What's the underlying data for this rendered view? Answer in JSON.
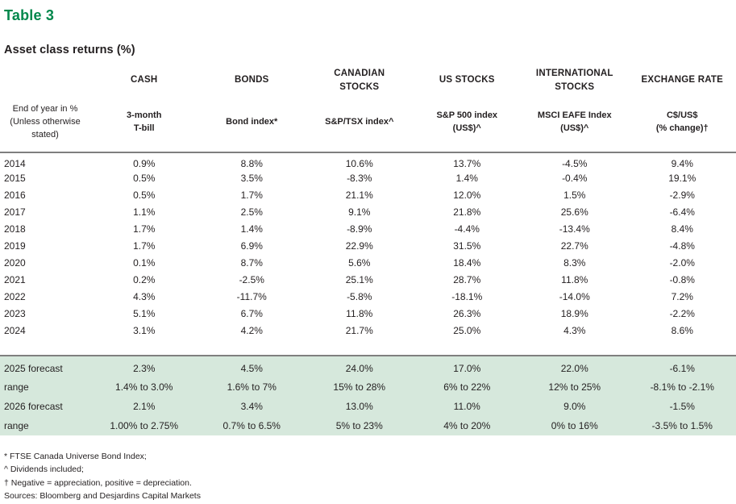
{
  "title": "Table 3",
  "subtitle": "Asset class returns (%)",
  "colors": {
    "accent_green": "#00874B",
    "forecast_band_green": "#d6e8dc",
    "rule_gray": "#7f7f7f"
  },
  "row_header": "End of year in %\n(Unless otherwise\nstated)",
  "columns": [
    {
      "group": "CASH",
      "sub": "3-month\nT-bill"
    },
    {
      "group": "BONDS",
      "sub": "Bond index*"
    },
    {
      "group": "CANADIAN\nSTOCKS",
      "sub": "S&P/TSX index^"
    },
    {
      "group": "US STOCKS",
      "sub": "S&P 500 index\n(US$)^"
    },
    {
      "group": "INTERNATIONAL\nSTOCKS",
      "sub": "MSCI EAFE Index\n(US$)^"
    },
    {
      "group": "EXCHANGE RATE",
      "sub": "C$/US$\n(% change)†"
    }
  ],
  "rows": [
    {
      "label": "2014",
      "values": [
        "0.9%",
        "8.8%",
        "10.6%",
        "13.7%",
        "-4.5%",
        "9.4%"
      ]
    },
    {
      "label": "2015",
      "values": [
        "0.5%",
        "3.5%",
        "-8.3%",
        "1.4%",
        "-0.4%",
        "19.1%"
      ]
    },
    {
      "label": "2016",
      "values": [
        "0.5%",
        "1.7%",
        "21.1%",
        "12.0%",
        "1.5%",
        "-2.9%"
      ]
    },
    {
      "label": "2017",
      "values": [
        "1.1%",
        "2.5%",
        "9.1%",
        "21.8%",
        "25.6%",
        "-6.4%"
      ]
    },
    {
      "label": "2018",
      "values": [
        "1.7%",
        "1.4%",
        "-8.9%",
        "-4.4%",
        "-13.4%",
        "8.4%"
      ]
    },
    {
      "label": "2019",
      "values": [
        "1.7%",
        "6.9%",
        "22.9%",
        "31.5%",
        "22.7%",
        "-4.8%"
      ]
    },
    {
      "label": "2020",
      "values": [
        "0.1%",
        "8.7%",
        "5.6%",
        "18.4%",
        "8.3%",
        "-2.0%"
      ]
    },
    {
      "label": "2021",
      "values": [
        "0.2%",
        "-2.5%",
        "25.1%",
        "28.7%",
        "11.8%",
        "-0.8%"
      ]
    },
    {
      "label": "2022",
      "values": [
        "4.3%",
        "-11.7%",
        "-5.8%",
        "-18.1%",
        "-14.0%",
        "7.2%"
      ]
    },
    {
      "label": "2023",
      "values": [
        "5.1%",
        "6.7%",
        "11.8%",
        "26.3%",
        "18.9%",
        "-2.2%"
      ]
    },
    {
      "label": "2024",
      "values": [
        "3.1%",
        "4.2%",
        "21.7%",
        "25.0%",
        "4.3%",
        "8.6%"
      ]
    }
  ],
  "forecast": {
    "rows": [
      {
        "label": "2025 forecast",
        "values": [
          "2.3%",
          "4.5%",
          "24.0%",
          "17.0%",
          "22.0%",
          "-6.1%"
        ]
      },
      {
        "label": "range",
        "values": [
          "1.4% to 3.0%",
          "1.6% to 7%",
          "15% to 28%",
          "6% to 22%",
          "12% to 25%",
          "-8.1% to -2.1%"
        ]
      },
      {
        "label": "2026 forecast",
        "values": [
          "2.1%",
          "3.4%",
          "13.0%",
          "11.0%",
          "9.0%",
          "-1.5%"
        ]
      },
      {
        "label": "range",
        "values": [
          "1.00% to 2.75%",
          "0.7% to 6.5%",
          "5% to 23%",
          "4% to 20%",
          "0% to 16%",
          "-3.5% to 1.5%"
        ]
      }
    ]
  },
  "footnotes": [
    "* FTSE Canada Universe Bond Index;",
    "^ Dividends included;",
    "† Negative = appreciation, positive = depreciation.",
    "Sources: Bloomberg and Desjardins Capital Markets"
  ]
}
